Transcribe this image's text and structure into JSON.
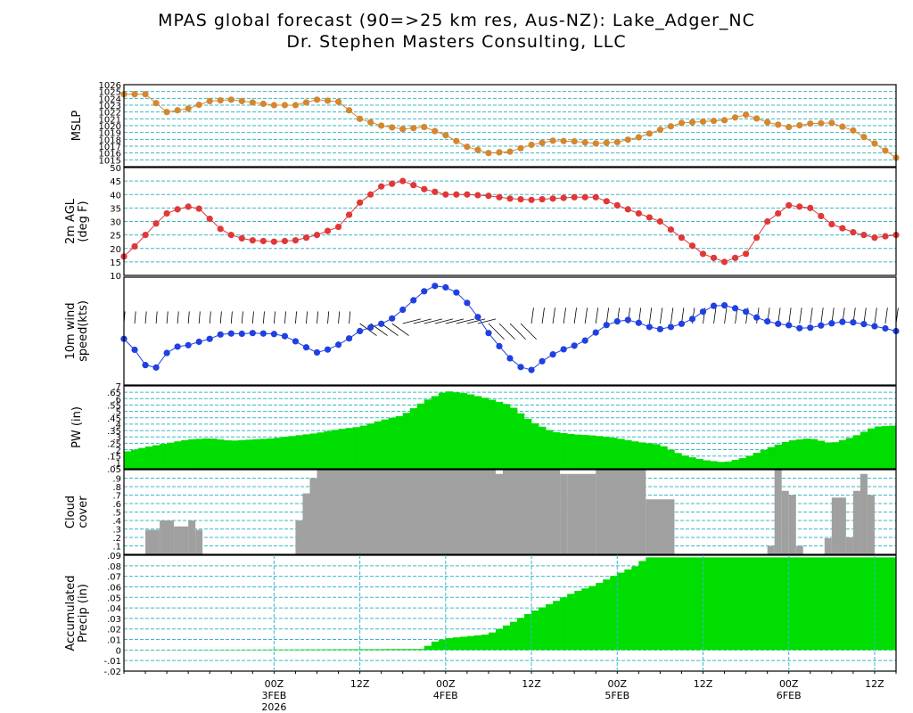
{
  "title_line1": "MPAS global forecast (90=>25 km res, Aus-NZ): Lake_Adger_NC",
  "title_line2": "Dr. Stephen Masters Consulting, LLC",
  "chart_data": {
    "type": "meteogram",
    "time_axis": {
      "hours_start": -21,
      "hours_end": 84,
      "tick_labels": [
        {
          "hour": 0,
          "label": "00Z",
          "sub": "3FEB",
          "sub2": "2026"
        },
        {
          "hour": 12,
          "label": "12Z"
        },
        {
          "hour": 24,
          "label": "00Z",
          "sub": "4FEB"
        },
        {
          "hour": 36,
          "label": "12Z"
        },
        {
          "hour": 48,
          "label": "00Z",
          "sub": "5FEB"
        },
        {
          "hour": 60,
          "label": "12Z"
        },
        {
          "hour": 72,
          "label": "00Z",
          "sub": "6FEB"
        },
        {
          "hour": 84,
          "label": "12Z"
        }
      ],
      "vertical_gridlines_in_panel": "Accumulated Precip (in)"
    },
    "panels": [
      {
        "id": "mslp",
        "ylabel": [
          "MSLP"
        ],
        "ylim": [
          1014,
          1026
        ],
        "ticks": [
          1015,
          1016,
          1017,
          1018,
          1019,
          1020,
          1021,
          1022,
          1023,
          1024,
          1025,
          1026
        ],
        "type": "line",
        "color": "#d4872f",
        "knots": [
          [
            -21,
            1024.6
          ],
          [
            -18,
            1024.6
          ],
          [
            -15,
            1022.0
          ],
          [
            -12,
            1022.5
          ],
          [
            -9,
            1023.6
          ],
          [
            -6,
            1023.8
          ],
          [
            -3,
            1023.4
          ],
          [
            0,
            1023.0
          ],
          [
            3,
            1023.0
          ],
          [
            6,
            1023.8
          ],
          [
            9,
            1023.5
          ],
          [
            12,
            1021.0
          ],
          [
            15,
            1020.0
          ],
          [
            18,
            1019.5
          ],
          [
            21,
            1019.8
          ],
          [
            24,
            1018.6
          ],
          [
            27,
            1016.9
          ],
          [
            30,
            1016.0
          ],
          [
            33,
            1016.2
          ],
          [
            36,
            1017.2
          ],
          [
            39,
            1017.8
          ],
          [
            42,
            1017.7
          ],
          [
            45,
            1017.4
          ],
          [
            48,
            1017.6
          ],
          [
            51,
            1018.3
          ],
          [
            54,
            1019.4
          ],
          [
            57,
            1020.4
          ],
          [
            60,
            1020.6
          ],
          [
            63,
            1020.8
          ],
          [
            66,
            1021.6
          ],
          [
            69,
            1020.5
          ],
          [
            72,
            1019.8
          ],
          [
            75,
            1020.3
          ],
          [
            78,
            1020.4
          ],
          [
            81,
            1019.3
          ],
          [
            84,
            1017.4
          ],
          [
            87,
            1015.3
          ]
        ]
      },
      {
        "id": "t2m",
        "ylabel": [
          "2m AGL",
          "(deg F)"
        ],
        "ylim": [
          10,
          50
        ],
        "ticks": [
          15,
          20,
          25,
          30,
          35,
          40,
          45
        ],
        "ticklabels": [
          10,
          15,
          20,
          25,
          30,
          35,
          40,
          45,
          50
        ],
        "type": "line",
        "color": "#e03838",
        "knots": [
          [
            -21,
            17
          ],
          [
            -19,
            22
          ],
          [
            -17,
            28
          ],
          [
            -15,
            33
          ],
          [
            -13,
            35
          ],
          [
            -11,
            36
          ],
          [
            -9,
            31
          ],
          [
            -7,
            26
          ],
          [
            -5,
            24
          ],
          [
            -3,
            23
          ],
          [
            0,
            22.5
          ],
          [
            3,
            23
          ],
          [
            6,
            25
          ],
          [
            9,
            28
          ],
          [
            12,
            37
          ],
          [
            15,
            43
          ],
          [
            18,
            45
          ],
          [
            21,
            42
          ],
          [
            24,
            40
          ],
          [
            27,
            40
          ],
          [
            30,
            39.5
          ],
          [
            33,
            38.5
          ],
          [
            36,
            38
          ],
          [
            39,
            38.5
          ],
          [
            42,
            39
          ],
          [
            45,
            39
          ],
          [
            48,
            36
          ],
          [
            51,
            33
          ],
          [
            54,
            30
          ],
          [
            57,
            24
          ],
          [
            60,
            18
          ],
          [
            63,
            15
          ],
          [
            66,
            18
          ],
          [
            69,
            30
          ],
          [
            72,
            36
          ],
          [
            75,
            35
          ],
          [
            78,
            29
          ],
          [
            81,
            26
          ],
          [
            84,
            24
          ],
          [
            87,
            25
          ]
        ]
      },
      {
        "id": "wind",
        "ylabel": [
          "10m wind",
          "speed(kts)"
        ],
        "type": "line_with_barbs",
        "color": "#2040e0",
        "knots": [
          [
            -21,
            0.42
          ],
          [
            -20,
            0.36
          ],
          [
            -18,
            0.15
          ],
          [
            -17,
            0.05
          ],
          [
            -16,
            0.2
          ],
          [
            -14,
            0.35
          ],
          [
            -13,
            0.33
          ],
          [
            -11,
            0.38
          ],
          [
            -9,
            0.42
          ],
          [
            -7,
            0.48
          ],
          [
            -5,
            0.47
          ],
          [
            -3,
            0.48
          ],
          [
            0,
            0.47
          ],
          [
            2,
            0.44
          ],
          [
            4,
            0.35
          ],
          [
            6,
            0.28
          ],
          [
            8,
            0.32
          ],
          [
            10,
            0.4
          ],
          [
            12,
            0.5
          ],
          [
            14,
            0.55
          ],
          [
            16,
            0.6
          ],
          [
            18,
            0.72
          ],
          [
            20,
            0.85
          ],
          [
            22,
            0.97
          ],
          [
            24,
            0.95
          ],
          [
            26,
            0.88
          ],
          [
            28,
            0.7
          ],
          [
            30,
            0.48
          ],
          [
            32,
            0.3
          ],
          [
            34,
            0.14
          ],
          [
            36,
            0.1
          ],
          [
            38,
            0.22
          ],
          [
            40,
            0.3
          ],
          [
            42,
            0.35
          ],
          [
            44,
            0.42
          ],
          [
            46,
            0.55
          ],
          [
            48,
            0.6
          ],
          [
            50,
            0.62
          ],
          [
            52,
            0.55
          ],
          [
            54,
            0.52
          ],
          [
            56,
            0.55
          ],
          [
            58,
            0.6
          ],
          [
            60,
            0.7
          ],
          [
            62,
            0.78
          ],
          [
            64,
            0.75
          ],
          [
            65,
            0.72
          ],
          [
            66,
            0.7
          ],
          [
            68,
            0.62
          ],
          [
            70,
            0.58
          ],
          [
            72,
            0.56
          ],
          [
            74,
            0.52
          ],
          [
            76,
            0.55
          ],
          [
            78,
            0.58
          ],
          [
            80,
            0.6
          ],
          [
            82,
            0.58
          ],
          [
            84,
            0.55
          ],
          [
            86,
            0.52
          ],
          [
            87,
            0.5
          ]
        ]
      },
      {
        "id": "pw",
        "ylabel": [
          "PW (in)"
        ],
        "ylim": [
          0.05,
          0.7
        ],
        "ticks": [
          0.05,
          0.1,
          0.15,
          0.2,
          0.25,
          0.3,
          0.35,
          0.4,
          0.45,
          0.5,
          0.55,
          0.6,
          0.65,
          0.7
        ],
        "type": "bar",
        "color": "#00dd00",
        "knots": [
          [
            -21,
            0.18
          ],
          [
            -18,
            0.22
          ],
          [
            -15,
            0.25
          ],
          [
            -12,
            0.28
          ],
          [
            -9,
            0.29
          ],
          [
            -6,
            0.27
          ],
          [
            -3,
            0.28
          ],
          [
            0,
            0.29
          ],
          [
            3,
            0.31
          ],
          [
            6,
            0.33
          ],
          [
            9,
            0.36
          ],
          [
            12,
            0.38
          ],
          [
            15,
            0.43
          ],
          [
            18,
            0.47
          ],
          [
            21,
            0.58
          ],
          [
            24,
            0.66
          ],
          [
            27,
            0.64
          ],
          [
            30,
            0.6
          ],
          [
            33,
            0.55
          ],
          [
            36,
            0.42
          ],
          [
            39,
            0.34
          ],
          [
            42,
            0.32
          ],
          [
            45,
            0.31
          ],
          [
            48,
            0.29
          ],
          [
            51,
            0.26
          ],
          [
            54,
            0.24
          ],
          [
            57,
            0.16
          ],
          [
            60,
            0.12
          ],
          [
            63,
            0.1
          ],
          [
            66,
            0.14
          ],
          [
            69,
            0.21
          ],
          [
            72,
            0.27
          ],
          [
            75,
            0.29
          ],
          [
            78,
            0.25
          ],
          [
            81,
            0.3
          ],
          [
            84,
            0.38
          ],
          [
            87,
            0.39
          ]
        ]
      },
      {
        "id": "cloud",
        "ylabel": [
          "Cloud",
          "cover"
        ],
        "ylim": [
          0,
          1
        ],
        "ticks": [
          0.1,
          0.2,
          0.3,
          0.4,
          0.5,
          0.6,
          0.7,
          0.8,
          0.9
        ],
        "type": "bar",
        "color": "#a0a0a0",
        "bars": [
          [
            -21,
            -18,
            0
          ],
          [
            -18,
            -16,
            0.29
          ],
          [
            -16,
            -14,
            0.4
          ],
          [
            -14,
            -12,
            0.33
          ],
          [
            -12,
            -11,
            0.4
          ],
          [
            -11,
            -10,
            0.29
          ],
          [
            -10,
            3,
            0
          ],
          [
            3,
            4,
            0.4
          ],
          [
            4,
            5,
            0.72
          ],
          [
            5,
            6,
            0.9
          ],
          [
            6,
            31,
            1.0
          ],
          [
            31,
            32,
            0.95
          ],
          [
            32,
            33,
            1.0
          ],
          [
            33,
            40,
            1.0
          ],
          [
            40,
            41,
            0.95
          ],
          [
            41,
            45,
            0.95
          ],
          [
            45,
            52,
            1.0
          ],
          [
            52,
            56,
            0.65
          ],
          [
            56,
            69,
            0
          ],
          [
            69,
            70,
            0.1
          ],
          [
            70,
            71,
            1.0
          ],
          [
            71,
            72,
            0.75
          ],
          [
            72,
            73,
            0.7
          ],
          [
            73,
            74,
            0.1
          ],
          [
            74,
            77,
            0
          ],
          [
            77,
            78,
            0.19
          ],
          [
            78,
            80,
            0.67
          ],
          [
            80,
            81,
            0.2
          ],
          [
            81,
            82,
            0.75
          ],
          [
            82,
            83,
            0.95
          ],
          [
            83,
            84,
            0.7
          ]
        ]
      },
      {
        "id": "precip",
        "ylabel": [
          "Accumulated",
          "Precip (in)"
        ],
        "ylim": [
          -0.02,
          0.09
        ],
        "ticks": [
          -0.02,
          -0.01,
          0,
          0.01,
          0.02,
          0.03,
          0.04,
          0.05,
          0.06,
          0.07,
          0.08,
          0.09
        ],
        "type": "bar",
        "color": "#00dd00",
        "knots": [
          [
            -21,
            0
          ],
          [
            21,
            0.001
          ],
          [
            22,
            0.007
          ],
          [
            24,
            0.011
          ],
          [
            27,
            0.013
          ],
          [
            30,
            0.015
          ],
          [
            33,
            0.025
          ],
          [
            36,
            0.036
          ],
          [
            39,
            0.045
          ],
          [
            42,
            0.055
          ],
          [
            45,
            0.062
          ],
          [
            48,
            0.072
          ],
          [
            51,
            0.081
          ],
          [
            52,
            0.088
          ],
          [
            87,
            0.088
          ]
        ]
      }
    ]
  },
  "colors": {
    "gridline": "#3ab8c8",
    "axis": "#000000",
    "zero_line": "#3ab8c8"
  }
}
